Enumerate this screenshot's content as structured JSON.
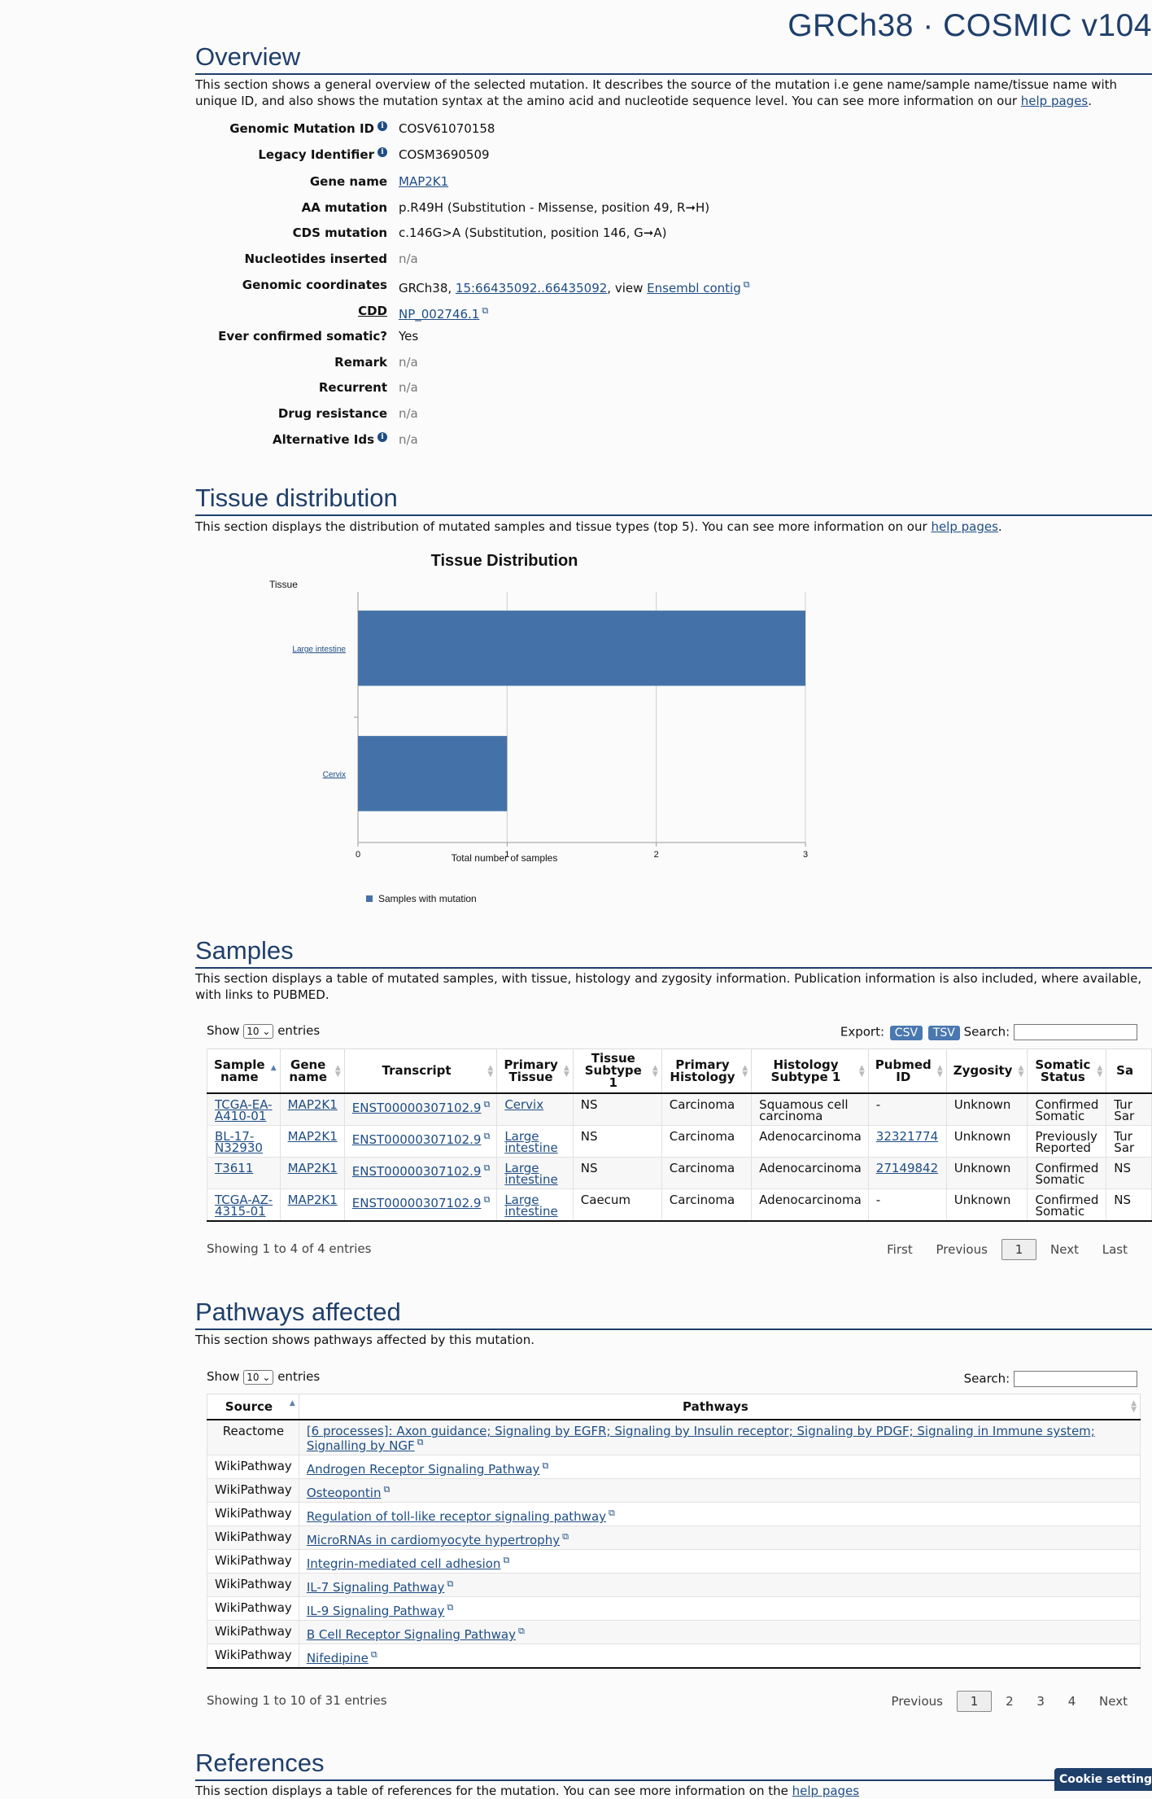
{
  "header": {
    "assembly": "GRCh38 · COSMIC v104"
  },
  "overview": {
    "title": "Overview",
    "desc_before": "This section shows a general overview of the selected mutation. It describes the source of the mutation i.e gene name/sample name/tissue name with unique ID, and also shows the mutation syntax at the amino acid and nucleotide sequence level. You can see more information on our ",
    "help_link": "help pages",
    "desc_after": ".",
    "rows": {
      "genomic_mutation_id": {
        "label": "Genomic Mutation ID",
        "value": "COSV61070158"
      },
      "legacy_identifier": {
        "label": "Legacy Identifier",
        "value": "COSM3690509"
      },
      "gene_name": {
        "label": "Gene name",
        "value": "MAP2K1"
      },
      "aa_mutation": {
        "label": "AA mutation",
        "value": "p.R49H (Substitution - Missense, position 49, R➞H)"
      },
      "cds_mutation": {
        "label": "CDS mutation",
        "value": "c.146G>A (Substitution, position 146, G➞A)"
      },
      "nucleotides_inserted": {
        "label": "Nucleotides inserted",
        "value": "n/a"
      },
      "genomic_coordinates": {
        "label": "Genomic coordinates",
        "prefix": "GRCh38, ",
        "coord_link": "15:66435092..66435092",
        "middle": ", view ",
        "ensembl_link": "Ensembl contig"
      },
      "cdd": {
        "label": "CDD",
        "value": "NP_002746.1"
      },
      "ever_confirmed_somatic": {
        "label": "Ever confirmed somatic?",
        "value": "Yes"
      },
      "remark": {
        "label": "Remark",
        "value": "n/a"
      },
      "recurrent": {
        "label": "Recurrent",
        "value": "n/a"
      },
      "drug_resistance": {
        "label": "Drug resistance",
        "value": "n/a"
      },
      "alternative_ids": {
        "label": "Alternative Ids",
        "value": "n/a"
      }
    }
  },
  "tissue": {
    "title": "Tissue distribution",
    "desc_before": "This section displays the distribution of mutated samples and tissue types (top 5). You can see more information on our ",
    "help_link": "help pages",
    "desc_after": "."
  },
  "chart_data": {
    "type": "bar",
    "orientation": "horizontal",
    "title": "Tissue Distribution",
    "ylabel": "Tissue",
    "xlabel": "Total number of samples",
    "categories": [
      "Large intestine",
      "Cervix"
    ],
    "series": [
      {
        "name": "Samples with mutation",
        "values": [
          3,
          1
        ],
        "color": "#4472a8"
      }
    ],
    "xlim": [
      0,
      3
    ],
    "xticks": [
      "0",
      "1",
      "2",
      "3"
    ],
    "grid": true,
    "legend": "bottom-left"
  },
  "samples": {
    "title": "Samples",
    "desc": "This section displays a table of mutated samples, with tissue, histology and zygosity information. Publication information is also included, where available, with links to PUBMED.",
    "show_label": "Show",
    "show_value": "10",
    "entries_label": "entries",
    "export_label": "Export:",
    "csv": "CSV",
    "tsv": "TSV",
    "search_label": "Search:",
    "columns": [
      "Sample name",
      "Gene name",
      "Transcript",
      "Primary Tissue",
      "Tissue Subtype 1",
      "Primary Histology",
      "Histology Subtype 1",
      "Pubmed ID",
      "Zygosity",
      "Somatic Status",
      "Sa"
    ],
    "rows": [
      [
        "TCGA-EA-A410-01",
        "MAP2K1",
        "ENST00000307102.9",
        "Cervix",
        "NS",
        "Carcinoma",
        "Squamous cell carcinoma",
        "-",
        "Unknown",
        "Confirmed Somatic",
        "Tur Sar"
      ],
      [
        "BL-17-N32930",
        "MAP2K1",
        "ENST00000307102.9",
        "Large intestine",
        "NS",
        "Carcinoma",
        "Adenocarcinoma",
        "32321774",
        "Unknown",
        "Previously Reported",
        "Tur Sar"
      ],
      [
        "T3611",
        "MAP2K1",
        "ENST00000307102.9",
        "Large intestine",
        "NS",
        "Carcinoma",
        "Adenocarcinoma",
        "27149842",
        "Unknown",
        "Confirmed Somatic",
        "NS"
      ],
      [
        "TCGA-AZ-4315-01",
        "MAP2K1",
        "ENST00000307102.9",
        "Large intestine",
        "Caecum",
        "Carcinoma",
        "Adenocarcinoma",
        "-",
        "Unknown",
        "Confirmed Somatic",
        "NS"
      ]
    ],
    "info": "Showing 1 to 4 of 4 entries",
    "pager": {
      "first": "First",
      "previous": "Previous",
      "current": "1",
      "next": "Next",
      "last": "Last"
    }
  },
  "pathways": {
    "title": "Pathways affected",
    "desc": "This section shows pathways affected by this mutation.",
    "show_label": "Show",
    "show_value": "10",
    "entries_label": "entries",
    "search_label": "Search:",
    "columns": [
      "Source",
      "Pathways"
    ],
    "rows": [
      [
        "Reactome",
        "[6 processes]: Axon guidance; Signaling by EGFR; Signaling by Insulin receptor; Signaling by PDGF; Signaling in Immune system; Signalling by NGF"
      ],
      [
        "WikiPathway",
        "Androgen Receptor Signaling Pathway"
      ],
      [
        "WikiPathway",
        "Osteopontin"
      ],
      [
        "WikiPathway",
        "Regulation of toll-like receptor signaling pathway"
      ],
      [
        "WikiPathway",
        "MicroRNAs in cardiomyocyte hypertrophy"
      ],
      [
        "WikiPathway",
        "Integrin-mediated cell adhesion"
      ],
      [
        "WikiPathway",
        "IL-7 Signaling Pathway"
      ],
      [
        "WikiPathway",
        "IL-9 Signaling Pathway"
      ],
      [
        "WikiPathway",
        "B Cell Receptor Signaling Pathway"
      ],
      [
        "WikiPathway",
        "Nifedipine"
      ]
    ],
    "info": "Showing 1 to 10 of 31 entries",
    "pager": {
      "previous": "Previous",
      "pages": [
        "1",
        "2",
        "3",
        "4"
      ],
      "next": "Next"
    }
  },
  "references": {
    "title": "References",
    "desc_before": "This section displays a table of references for the mutation. You can see more information on the ",
    "help_link": "help pages"
  },
  "cookie": {
    "label": "Cookie settings"
  }
}
